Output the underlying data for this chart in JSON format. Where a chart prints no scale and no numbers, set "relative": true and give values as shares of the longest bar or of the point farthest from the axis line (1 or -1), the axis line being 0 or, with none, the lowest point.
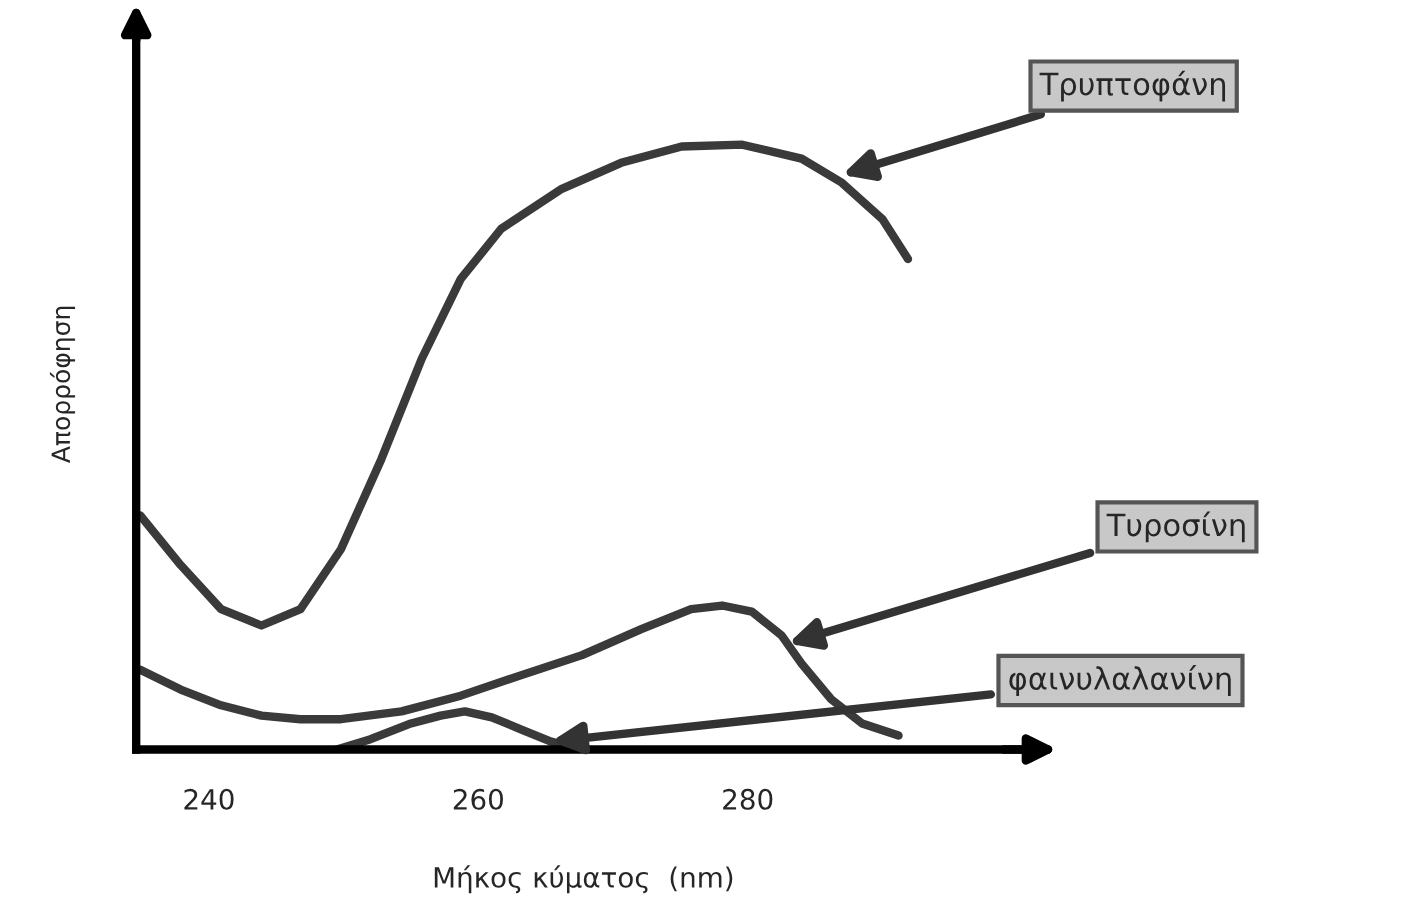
{
  "chart_data": {
    "type": "line",
    "relative": true,
    "xlabel": "Μήκος κύματος  (nm)",
    "ylabel": "Απορρόφηση",
    "xlim": [
      234.6,
      301
    ],
    "xticks": [
      240,
      260,
      280
    ],
    "grid": false,
    "marker": "none",
    "line_style": "solid",
    "tick_labels": "x",
    "series": [
      {
        "color": "#3a3a3a",
        "x": [
          234.9,
          237.9,
          240.9,
          243.9,
          246.8,
          249.8,
          252.8,
          255.8,
          258.7,
          261.7,
          266.2,
          270.6,
          275.1,
          279.6,
          284.0,
          287.0,
          290.0,
          291.9
        ],
        "values": [
          0.387,
          0.305,
          0.232,
          0.205,
          0.232,
          0.331,
          0.48,
          0.646,
          0.778,
          0.861,
          0.927,
          0.97,
          0.997,
          1.0,
          0.977,
          0.937,
          0.877,
          0.811
        ]
      },
      {
        "color": "#3a3a3a",
        "x": [
          234.9,
          237.9,
          240.9,
          243.9,
          246.8,
          249.8,
          254.3,
          258.7,
          263.2,
          267.7,
          272.1,
          275.8,
          278.1,
          280.3,
          282.5,
          284.0,
          286.2,
          288.5,
          291.2
        ],
        "values": [
          0.132,
          0.099,
          0.073,
          0.056,
          0.05,
          0.05,
          0.063,
          0.089,
          0.123,
          0.156,
          0.199,
          0.232,
          0.238,
          0.228,
          0.189,
          0.142,
          0.083,
          0.043,
          0.023
        ]
      },
      {
        "color": "#3a3a3a",
        "x": [
          249.5,
          252.0,
          255.0,
          257.2,
          259.0,
          261.0,
          263.2,
          265.4,
          267.7
        ],
        "values": [
          0,
          0.017,
          0.043,
          0.056,
          0.063,
          0.053,
          0.033,
          0.013,
          0
        ]
      }
    ],
    "annotations": [
      {
        "text": "Τρυπτοφάνη",
        "x": 287,
        "y": 0.95
      },
      {
        "text": "Τυροσίνη",
        "x": 283,
        "y": 0.175
      },
      {
        "text": "φαινυλαλανίνη",
        "x": 265.4,
        "y": 0.013
      }
    ]
  }
}
